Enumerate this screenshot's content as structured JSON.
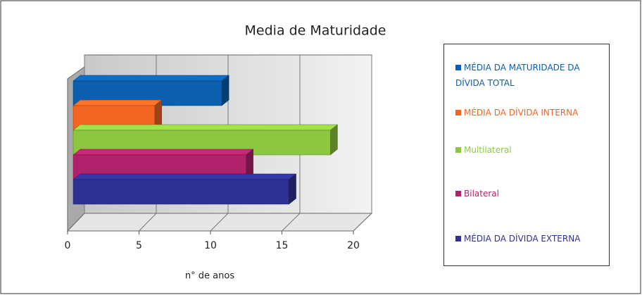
{
  "chart_data": {
    "type": "bar3d_horizontal",
    "title": "Media de Maturidade",
    "xlabel": "n° de anos",
    "xlim": [
      0,
      20
    ],
    "xticks": [
      0,
      5,
      10,
      15,
      20
    ],
    "grid": true,
    "series": [
      {
        "name": "MÉDIA DA MATURIDADE DA DÍVIDA TOTAL",
        "color": "#0b5fae",
        "values": [
          10.4
        ]
      },
      {
        "name": "MÉDIA DA DÍVIDA INTERNA",
        "color": "#f26522",
        "values": [
          5.7
        ]
      },
      {
        "name": "Multilateral",
        "color": "#8dc63f",
        "values": [
          18
        ]
      },
      {
        "name": "Bilateral",
        "color": "#b0226b",
        "values": [
          12.1
        ]
      },
      {
        "name": "MÉDIA DA DÍVIDA EXTERNA",
        "color": "#2e3192",
        "values": [
          15.1
        ]
      }
    ]
  }
}
